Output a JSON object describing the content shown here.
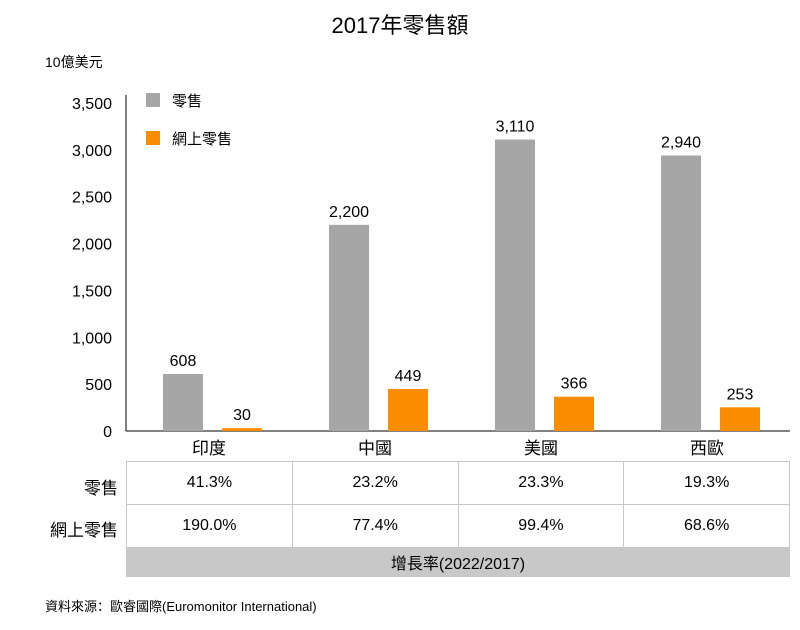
{
  "chart_data": {
    "type": "bar",
    "title": "2017年零售額",
    "ylabel": "10億美元",
    "ylim": [
      0,
      3500
    ],
    "yticks": [
      0,
      500,
      1000,
      1500,
      2000,
      2500,
      3000,
      3500
    ],
    "ytick_labels": [
      "0",
      "500",
      "1,000",
      "1,500",
      "2,000",
      "2,500",
      "3,000",
      "3,500"
    ],
    "categories": [
      "印度",
      "中國",
      "美國",
      "西歐"
    ],
    "series": [
      {
        "name": "零售",
        "color": "#a6a6a6",
        "values": [
          608,
          2200,
          3110,
          2940
        ],
        "labels": [
          "608",
          "2,200",
          "3,110",
          "2,940"
        ]
      },
      {
        "name": "網上零售",
        "color": "#fa8c00",
        "values": [
          30,
          449,
          366,
          253
        ],
        "labels": [
          "30",
          "449",
          "366",
          "253"
        ]
      }
    ],
    "legend": "top-left",
    "grid": false
  },
  "table": {
    "rows": [
      {
        "label": "零售",
        "values": [
          "41.3%",
          "23.2%",
          "23.3%",
          "19.3%"
        ]
      },
      {
        "label": "網上零售",
        "values": [
          "190.0%",
          "77.4%",
          "99.4%",
          "68.6%"
        ]
      }
    ],
    "footer": "增長率(2022/2017)"
  },
  "source": "資料來源：歐睿國際(Euromonitor International)"
}
